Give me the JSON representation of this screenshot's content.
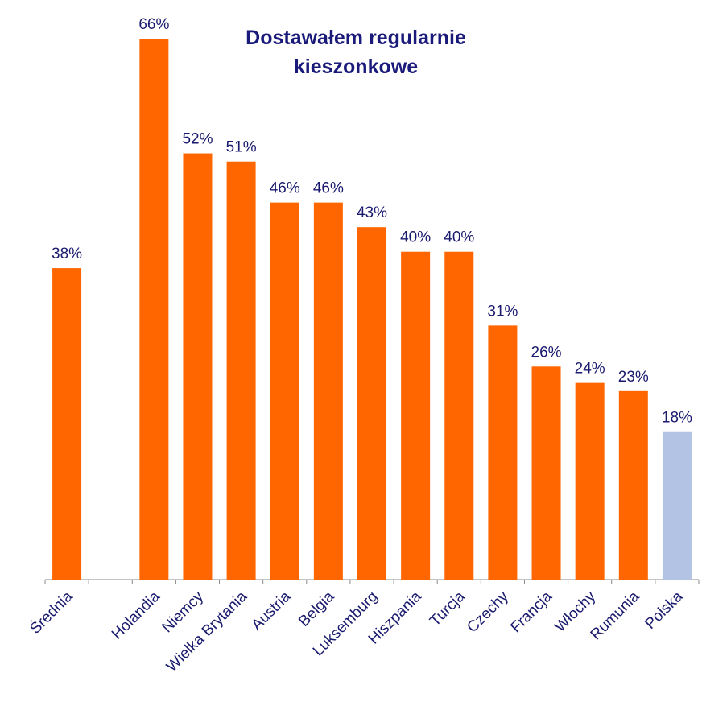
{
  "chart_data": {
    "type": "bar",
    "title": [
      "Dostawałem regularnie",
      "kieszonkowe"
    ],
    "categories": [
      "Średnia",
      null,
      "Holandia",
      "Niemcy",
      "Wielka Brytania",
      "Austria",
      "Belgia",
      "Luksemburg",
      "Hiszpania",
      "Turcja",
      "Czechy",
      "Francja",
      "Włochy",
      "Rumunia",
      "Polska"
    ],
    "values": [
      38,
      null,
      66,
      52,
      51,
      46,
      46,
      43,
      40,
      40,
      31,
      26,
      24,
      23,
      18
    ],
    "value_labels": [
      "38%",
      null,
      "66%",
      "52%",
      "51%",
      "46%",
      "46%",
      "43%",
      "40%",
      "40%",
      "31%",
      "26%",
      "24%",
      "23%",
      "18%"
    ],
    "colors": [
      "#ff6600",
      null,
      "#ff6600",
      "#ff6600",
      "#ff6600",
      "#ff6600",
      "#ff6600",
      "#ff6600",
      "#ff6600",
      "#ff6600",
      "#ff6600",
      "#ff6600",
      "#ff6600",
      "#ff6600",
      "#b3c3e3"
    ]
  }
}
